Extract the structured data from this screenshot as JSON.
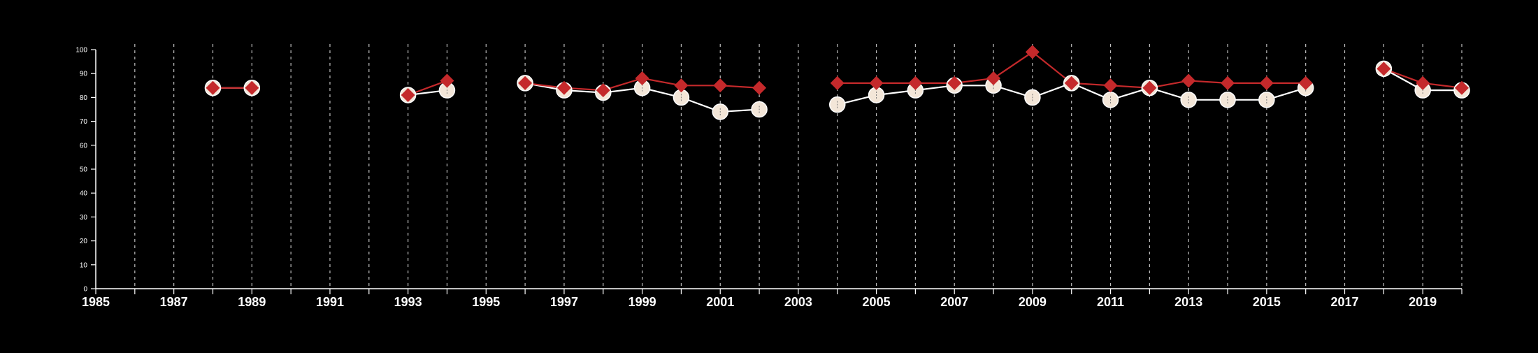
{
  "chart_data": {
    "type": "line",
    "x_range": [
      1985,
      2020
    ],
    "ylim": [
      0,
      100
    ],
    "y_ticks": [
      "0",
      "10",
      "20",
      "30",
      "40",
      "50",
      "60",
      "70",
      "80",
      "90",
      "100"
    ],
    "x_tick_labels": [
      "1985",
      "1987",
      "1989",
      "1991",
      "1993",
      "1995",
      "1997",
      "1999",
      "2001",
      "2003",
      "2005",
      "2007",
      "2009",
      "2011",
      "2013",
      "2015",
      "2017",
      "2019"
    ],
    "vertical_gridlines": "dashed, every year",
    "grid": true,
    "legend": "none",
    "series": [
      {
        "marker": "circle",
        "color": "#ffffff",
        "fill": "#f3e6d8",
        "points": [
          [
            1988,
            84
          ],
          [
            1989,
            84
          ],
          [
            1993,
            81
          ],
          [
            1994,
            83
          ],
          [
            1996,
            86
          ],
          [
            1997,
            83
          ],
          [
            1998,
            82
          ],
          [
            1999,
            84
          ],
          [
            2000,
            80
          ],
          [
            2001,
            74
          ],
          [
            2002,
            75
          ],
          [
            2004,
            77
          ],
          [
            2005,
            81
          ],
          [
            2006,
            83
          ],
          [
            2007,
            85
          ],
          [
            2008,
            85
          ],
          [
            2009,
            80
          ],
          [
            2010,
            86
          ],
          [
            2011,
            79
          ],
          [
            2012,
            84
          ],
          [
            2013,
            79
          ],
          [
            2014,
            79
          ],
          [
            2015,
            79
          ],
          [
            2016,
            84
          ],
          [
            2018,
            92
          ],
          [
            2019,
            83
          ],
          [
            2020,
            83
          ]
        ]
      },
      {
        "marker": "diamond",
        "color": "#c4292b",
        "points": [
          [
            1988,
            84
          ],
          [
            1989,
            84
          ],
          [
            1993,
            81
          ],
          [
            1994,
            87
          ],
          [
            1996,
            86
          ],
          [
            1997,
            84
          ],
          [
            1998,
            83
          ],
          [
            1999,
            88
          ],
          [
            2000,
            85
          ],
          [
            2001,
            85
          ],
          [
            2002,
            84
          ],
          [
            2004,
            86
          ],
          [
            2005,
            86
          ],
          [
            2006,
            86
          ],
          [
            2007,
            86
          ],
          [
            2008,
            88
          ],
          [
            2009,
            99
          ],
          [
            2010,
            86
          ],
          [
            2011,
            85
          ],
          [
            2012,
            84
          ],
          [
            2013,
            87
          ],
          [
            2014,
            86
          ],
          [
            2015,
            86
          ],
          [
            2016,
            86
          ],
          [
            2018,
            92
          ],
          [
            2019,
            86
          ],
          [
            2020,
            84
          ]
        ]
      }
    ]
  }
}
